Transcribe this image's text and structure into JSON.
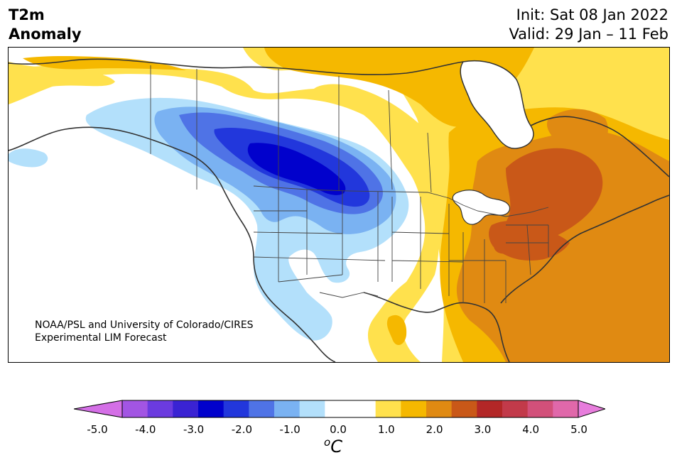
{
  "header": {
    "title_line1": "T2m",
    "title_line2": "Anomaly",
    "init_text": "Init: Sat 08 Jan 2022",
    "valid_text": "Valid: 29 Jan – 11 Feb"
  },
  "credit": {
    "line1": "NOAA/PSL and University of Colorado/CIRES",
    "line2": "Experimental LIM Forecast"
  },
  "colorbar": {
    "unit_base": "C",
    "unit_sup": "o",
    "tick_labels": [
      "-5.0",
      "-4.0",
      "-3.0",
      "-2.0",
      "-1.0",
      "0.0",
      "1.0",
      "2.0",
      "3.0",
      "4.0",
      "5.0"
    ],
    "under_color": "#d46fe6",
    "over_color": "#e77ddc",
    "colors": [
      "#a255e3",
      "#6b3bdf",
      "#3a23d3",
      "#0101cc",
      "#2237dc",
      "#4f73e6",
      "#7ab2f2",
      "#b3e0fb",
      "#ffffff",
      "#ffffff",
      "#ffe14d",
      "#f5b800",
      "#e08a12",
      "#c95818",
      "#b32727",
      "#c23a4a",
      "#d2507a",
      "#e068aa"
    ]
  },
  "map_colors": {
    "neg_1": "#b3e0fb",
    "neg_2": "#7ab2f2",
    "neg_3": "#4f73e6",
    "neg_4": "#2237dc",
    "neg_5": "#0101cc",
    "pos_1": "#ffe14d",
    "pos_2": "#f5b800",
    "pos_3": "#e08a12",
    "pos_4": "#c95818",
    "water": "#ffffff",
    "border": "#333333"
  }
}
